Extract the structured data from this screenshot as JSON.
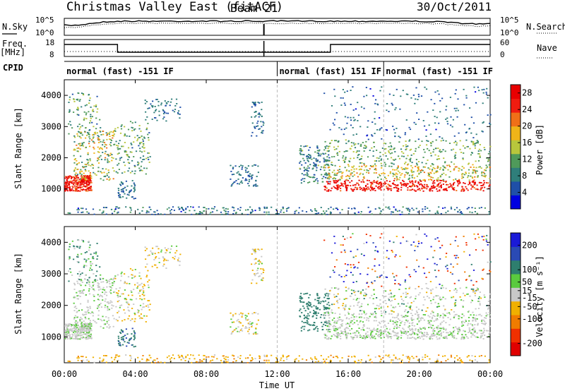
{
  "header": {
    "title": "Christmas Valley East (fitACF)",
    "beam": "Beam 21",
    "date": "30/Oct/2011"
  },
  "panel_labels": {
    "nsky": "N.Sky",
    "nsearch": "N.Search",
    "freq": "Freq.",
    "freq_unit": "[MHz]",
    "nave": "Nave",
    "cpid": "CPID"
  },
  "small_axes": {
    "noise_left_ticks": [
      "10^5",
      "10^0"
    ],
    "noise_right_ticks": [
      "10^5",
      "10^0"
    ],
    "freq_left_ticks": [
      "18",
      "8"
    ],
    "freq_right_ticks": [
      "60",
      "0"
    ]
  },
  "cpid_segments": [
    {
      "label": "normal (fast) -151 IF",
      "start_hour": 0,
      "end_hour": 12
    },
    {
      "label": "normal (fast) 151 IF",
      "start_hour": 12,
      "end_hour": 18
    },
    {
      "label": "normal (fast) -151 IF",
      "start_hour": 18,
      "end_hour": 24
    }
  ],
  "colors": {
    "power_scale": [
      "#0000e0",
      "#1f4fa8",
      "#2f7e7a",
      "#4f9a5a",
      "#b8c63c",
      "#f0b418",
      "#f07018",
      "#f01c10",
      "#e80000"
    ],
    "velocity_scale": [
      "#1a1ad8",
      "#2a4ab4",
      "#2e7e6e",
      "#5aca3e",
      "#c8c8c8",
      "#f0b000",
      "#f07c00",
      "#f03000",
      "#e00000"
    ]
  },
  "chart_data": [
    {
      "type": "heatmap",
      "name": "power",
      "xlabel": "",
      "ylabel": "Slant Range [km]",
      "xlim": [
        0,
        24
      ],
      "ylim": [
        180,
        4500
      ],
      "yticks": [
        1000,
        2000,
        3000,
        4000
      ],
      "colorbar_label": "Power [dB]",
      "colorbar_ticks": [
        4,
        8,
        12,
        16,
        20,
        24,
        28
      ],
      "colorbar_range": [
        0,
        30
      ]
    },
    {
      "type": "heatmap",
      "name": "velocity",
      "xlabel": "Time UT",
      "ylabel": "Slant Range [km]",
      "xlim": [
        0,
        24
      ],
      "ylim": [
        180,
        4500
      ],
      "xticks": [
        "00:00",
        "04:00",
        "08:00",
        "12:00",
        "16:00",
        "20:00",
        "00:00"
      ],
      "yticks": [
        1000,
        2000,
        3000,
        4000
      ],
      "colorbar_label": "Velocity [m s⁻¹]",
      "colorbar_ticks": [
        200,
        100,
        50,
        15,
        -15,
        -50,
        -100,
        -200
      ],
      "colorbar_range": [
        -250,
        250
      ]
    }
  ]
}
